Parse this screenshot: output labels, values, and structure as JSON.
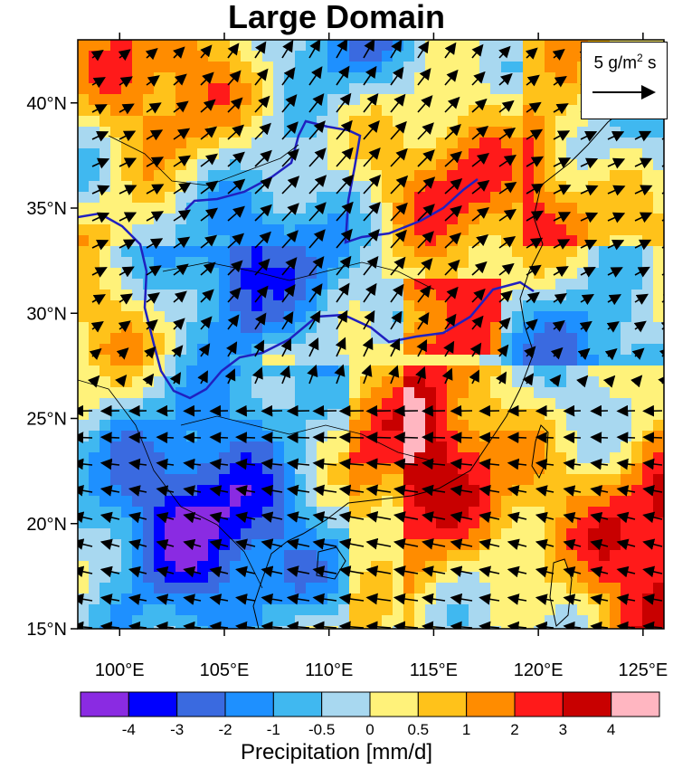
{
  "title": "Large Domain",
  "map": {
    "lon_range": [
      98,
      126
    ],
    "lat_range": [
      15,
      43
    ],
    "lon_ticks": [
      "100°E",
      "105°E",
      "110°E",
      "115°E",
      "120°E",
      "125°E"
    ],
    "lat_ticks": [
      "15°N",
      "20°N",
      "25°N",
      "30°N",
      "35°N",
      "40°N"
    ],
    "field": "precipitation difference",
    "vector_field": "moisture flux vectors",
    "boundary_color": "#2020c0"
  },
  "legend": {
    "reference_label": "5 g/m",
    "reference_sup": "2",
    "reference_unit_tail": " s",
    "reference_magnitude": 5
  },
  "colorbar": {
    "title": "Precipitation [mm/d]",
    "labels": [
      "-4",
      "-3",
      "-2",
      "-1",
      "-0.5",
      "0",
      "0.5",
      "1",
      "2",
      "3",
      "4"
    ],
    "colors": [
      "#8a2be2",
      "#0000ff",
      "#3a6ae0",
      "#1e90ff",
      "#40b8f0",
      "#a8d8f0",
      "#fff27a",
      "#ffc21a",
      "#ff8c00",
      "#ff1a1a",
      "#c80000",
      "#ffb6c1"
    ]
  }
}
